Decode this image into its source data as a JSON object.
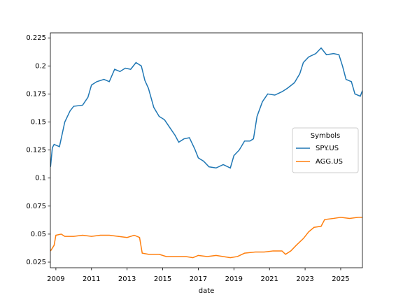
{
  "chart_data": {
    "type": "line",
    "x_label": "date",
    "xlim": [
      2008.69,
      2026.22
    ],
    "xticks": [
      2009,
      2011,
      2013,
      2015,
      2017,
      2019,
      2021,
      2023,
      2025
    ],
    "ylim": [
      0.02,
      0.2295
    ],
    "yticks": [
      0.025,
      0.05,
      0.075,
      0.1,
      0.125,
      0.15,
      0.175,
      0.2,
      0.225
    ],
    "legend_title": "Symbols",
    "legend_loc": "center right",
    "series": [
      {
        "name": "SPY.US",
        "color": "#1f77b4",
        "x": [
          2008.7,
          2008.8,
          2008.9,
          2009.2,
          2009.5,
          2009.8,
          2010.0,
          2010.5,
          2010.8,
          2011.0,
          2011.3,
          2011.7,
          2012.0,
          2012.3,
          2012.6,
          2012.9,
          2013.2,
          2013.5,
          2013.8,
          2014.0,
          2014.2,
          2014.5,
          2014.8,
          2015.1,
          2015.4,
          2015.7,
          2015.9,
          2016.2,
          2016.5,
          2016.8,
          2017.0,
          2017.3,
          2017.6,
          2018.0,
          2018.4,
          2018.8,
          2019.0,
          2019.3,
          2019.6,
          2019.9,
          2020.1,
          2020.3,
          2020.6,
          2020.9,
          2021.3,
          2021.7,
          2022.0,
          2022.4,
          2022.7,
          2022.9,
          2023.2,
          2023.6,
          2023.9,
          2024.2,
          2024.6,
          2024.9,
          2025.1,
          2025.3,
          2025.6,
          2025.8,
          2026.1,
          2026.22
        ],
        "values": [
          0.11,
          0.127,
          0.13,
          0.128,
          0.15,
          0.16,
          0.164,
          0.165,
          0.172,
          0.183,
          0.186,
          0.188,
          0.186,
          0.197,
          0.195,
          0.198,
          0.197,
          0.203,
          0.2,
          0.187,
          0.18,
          0.163,
          0.155,
          0.152,
          0.145,
          0.138,
          0.132,
          0.135,
          0.136,
          0.126,
          0.118,
          0.115,
          0.11,
          0.109,
          0.112,
          0.109,
          0.12,
          0.125,
          0.133,
          0.133,
          0.135,
          0.155,
          0.168,
          0.175,
          0.174,
          0.177,
          0.18,
          0.185,
          0.193,
          0.203,
          0.208,
          0.211,
          0.216,
          0.21,
          0.211,
          0.21,
          0.2,
          0.188,
          0.186,
          0.175,
          0.173,
          0.178
        ]
      },
      {
        "name": "AGG.US",
        "color": "#ff7f0e",
        "x": [
          2008.7,
          2008.9,
          2009.0,
          2009.3,
          2009.5,
          2010.0,
          2010.5,
          2011.0,
          2011.5,
          2012.0,
          2012.5,
          2013.0,
          2013.4,
          2013.7,
          2013.85,
          2014.2,
          2014.8,
          2015.2,
          2015.8,
          2016.3,
          2016.7,
          2017.0,
          2017.5,
          2018.0,
          2018.4,
          2018.8,
          2019.2,
          2019.6,
          2020.2,
          2020.7,
          2021.2,
          2021.7,
          2021.9,
          2022.2,
          2022.5,
          2022.9,
          2023.2,
          2023.5,
          2023.9,
          2024.1,
          2024.6,
          2025.0,
          2025.5,
          2026.0,
          2026.22
        ],
        "values": [
          0.035,
          0.04,
          0.049,
          0.05,
          0.048,
          0.048,
          0.049,
          0.048,
          0.049,
          0.049,
          0.048,
          0.047,
          0.049,
          0.047,
          0.033,
          0.032,
          0.032,
          0.03,
          0.03,
          0.03,
          0.029,
          0.031,
          0.03,
          0.031,
          0.03,
          0.029,
          0.03,
          0.033,
          0.034,
          0.034,
          0.035,
          0.035,
          0.032,
          0.035,
          0.04,
          0.046,
          0.052,
          0.056,
          0.057,
          0.063,
          0.064,
          0.065,
          0.064,
          0.065,
          0.065
        ]
      }
    ]
  }
}
